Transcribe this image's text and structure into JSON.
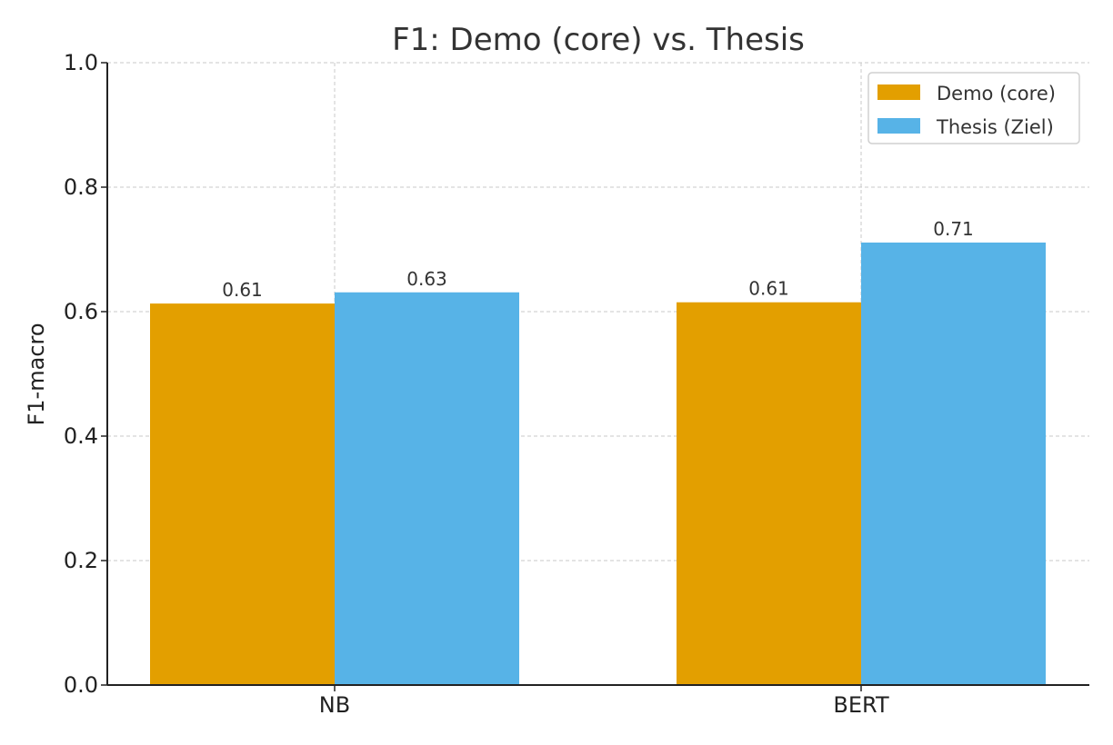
{
  "chart_data": {
    "type": "bar",
    "title": "F1: Demo (core) vs. Thesis",
    "xlabel": "",
    "ylabel": "F1-macro",
    "categories": [
      "NB",
      "BERT"
    ],
    "series": [
      {
        "name": "Demo (core)",
        "values": [
          0.613,
          0.615
        ],
        "labels": [
          "0.61",
          "0.61"
        ],
        "color": "#E39F00"
      },
      {
        "name": "Thesis (Ziel)",
        "values": [
          0.631,
          0.711
        ],
        "labels": [
          "0.63",
          "0.71"
        ],
        "color": "#57B3E7"
      }
    ],
    "ylim": [
      0,
      1.0
    ],
    "yticks": [
      "0.0",
      "0.2",
      "0.4",
      "0.6",
      "0.8",
      "1.0"
    ],
    "grid": true,
    "legend_position": "top-right"
  }
}
